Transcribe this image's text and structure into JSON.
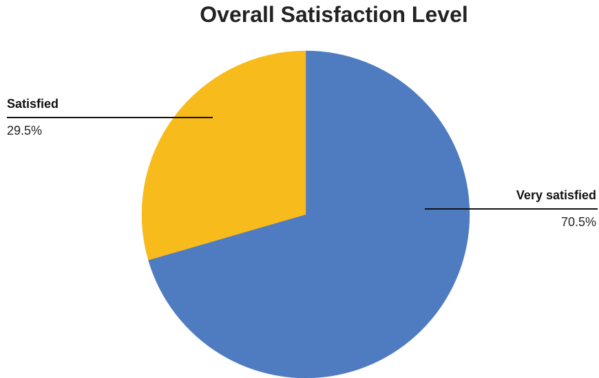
{
  "chart_data": {
    "type": "pie",
    "title": "Overall Satisfaction Level",
    "slices": [
      {
        "name": "Very satisfied",
        "value": 70.5,
        "label": "70.5%",
        "color": "#4F7CC1"
      },
      {
        "name": "Satisfied",
        "value": 29.5,
        "label": "29.5%",
        "color": "#F7BB1B"
      }
    ],
    "legend": "none",
    "start_angle": "12 o'clock, clockwise"
  }
}
